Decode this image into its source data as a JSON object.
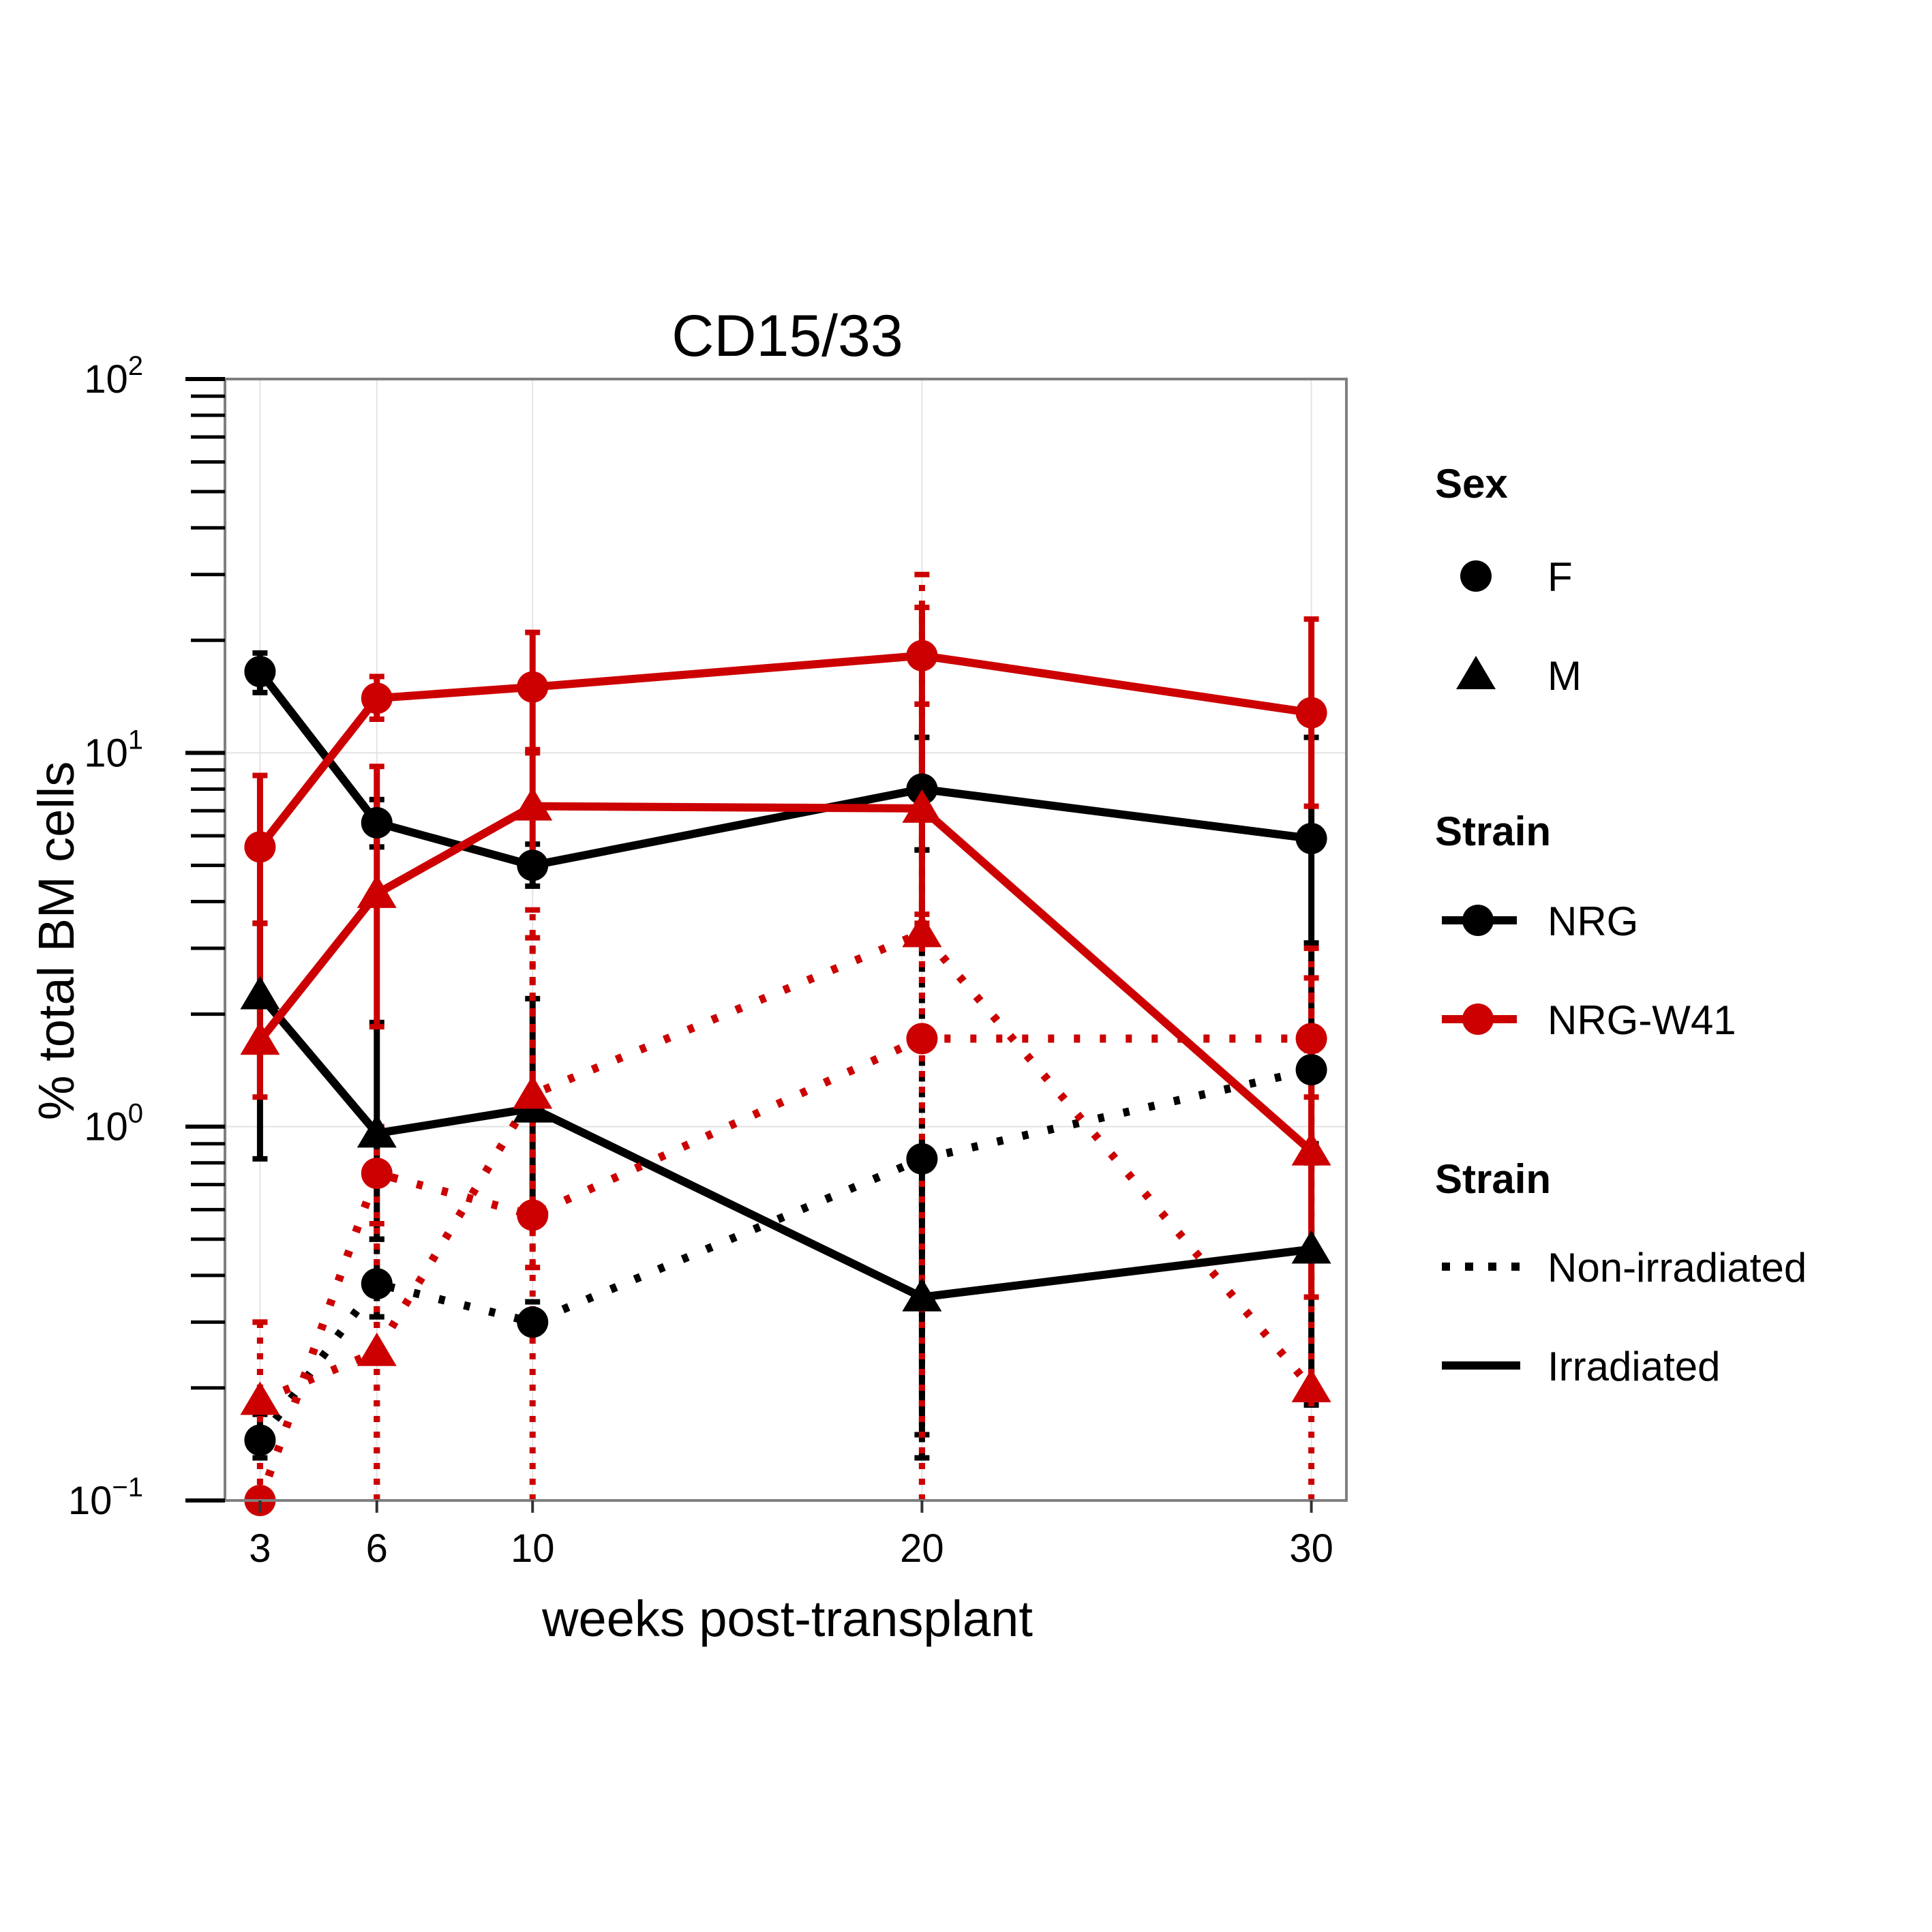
{
  "chart_data": {
    "type": "line",
    "title": "CD15/33",
    "xlabel": "weeks post-transplant",
    "ylabel": "% total BM cells",
    "x_ticks": [
      "3",
      "6",
      "10",
      "20",
      "30"
    ],
    "y_ticks": [
      {
        "base": "10",
        "exp": "2",
        "value": 100
      },
      {
        "base": "10",
        "exp": "1",
        "value": 10
      },
      {
        "base": "10",
        "exp": "0",
        "value": 1
      },
      {
        "base": "10",
        "exp": "−1",
        "value": 0.1
      }
    ],
    "yscale": "log10",
    "ylim": [
      0.1,
      100
    ],
    "xlim": [
      2.1,
      30.9
    ],
    "grid": true,
    "legend_position": "right",
    "colors": {
      "NRG": "#000000",
      "NRG-W41": "#cc0000"
    },
    "legends": {
      "sex": {
        "title": "Sex",
        "items": [
          {
            "label": "F",
            "shape": "circle"
          },
          {
            "label": "M",
            "shape": "triangle"
          }
        ]
      },
      "strain_color": {
        "title": "Strain",
        "items": [
          {
            "label": "NRG",
            "color": "#000000"
          },
          {
            "label": "NRG-W41",
            "color": "#cc0000"
          }
        ]
      },
      "strain_line": {
        "title": "Strain",
        "items": [
          {
            "label": "Non-irradiated",
            "linetype": "dotted"
          },
          {
            "label": "Irradiated",
            "linetype": "solid"
          }
        ]
      }
    },
    "series": [
      {
        "strain": "NRG",
        "sex": "F",
        "condition": "Irradiated",
        "x": [
          3,
          6,
          10,
          20,
          30
        ],
        "y": [
          16.5,
          6.5,
          5.0,
          8.0,
          5.9
        ],
        "lower": [
          14.5,
          5.6,
          4.4,
          5.5,
          0.9
        ],
        "upper": [
          18.5,
          7.5,
          5.7,
          11.0,
          11.0
        ]
      },
      {
        "strain": "NRG",
        "sex": "M",
        "condition": "Irradiated",
        "x": [
          3,
          6,
          10,
          20,
          30
        ],
        "y": [
          2.25,
          0.96,
          1.12,
          0.35,
          0.47
        ],
        "lower": [
          0.82,
          0.5,
          0.6,
          0.15,
          0.19
        ],
        "upper": [
          3.5,
          1.9,
          2.2,
          0.8,
          0.8
        ]
      },
      {
        "strain": "NRG",
        "sex": "F",
        "condition": "Non-irradiated",
        "x": [
          3,
          6,
          10,
          20,
          30
        ],
        "y": [
          0.145,
          0.38,
          0.3,
          0.82,
          1.42
        ],
        "lower": [
          0.13,
          0.31,
          0.28,
          0.13,
          0.18
        ],
        "upper": [
          0.17,
          0.5,
          0.34,
          5.5,
          3.1
        ]
      },
      {
        "strain": "NRG-W41",
        "sex": "F",
        "condition": "Irradiated",
        "x": [
          3,
          6,
          10,
          20,
          30
        ],
        "y": [
          5.6,
          14.0,
          15.0,
          18.2,
          12.8
        ],
        "lower": [
          3.5,
          12.3,
          10.0,
          13.5,
          7.2
        ],
        "upper": [
          8.7,
          16.0,
          21.0,
          24.5,
          22.8
        ]
      },
      {
        "strain": "NRG-W41",
        "sex": "M",
        "condition": "Irradiated",
        "x": [
          3,
          6,
          10,
          20,
          30
        ],
        "y": [
          1.7,
          4.2,
          7.2,
          7.1,
          0.86
        ],
        "lower": [
          1.2,
          1.85,
          4.9,
          3.7,
          0.35
        ],
        "upper": [
          3.5,
          9.2,
          10.2,
          13.5,
          1.6
        ]
      },
      {
        "strain": "NRG-W41",
        "sex": "F",
        "condition": "Non-irradiated",
        "x": [
          3,
          6,
          10,
          20,
          30
        ],
        "y": [
          0.1,
          0.75,
          0.58,
          1.72,
          1.72
        ],
        "lower": [
          0.1,
          0.1,
          0.42,
          0.1,
          1.2
        ],
        "upper": [
          0.3,
          1.0,
          3.2,
          3.5,
          2.5
        ]
      },
      {
        "strain": "NRG-W41",
        "sex": "M",
        "condition": "Non-irradiated",
        "x": [
          3,
          6,
          10,
          20,
          30
        ],
        "y": [
          0.185,
          0.25,
          1.22,
          3.3,
          0.2
        ],
        "lower": [
          0.1,
          0.1,
          0.1,
          0.1,
          0.1
        ],
        "upper": [
          0.3,
          0.55,
          3.8,
          30.0,
          3.0
        ]
      }
    ]
  }
}
